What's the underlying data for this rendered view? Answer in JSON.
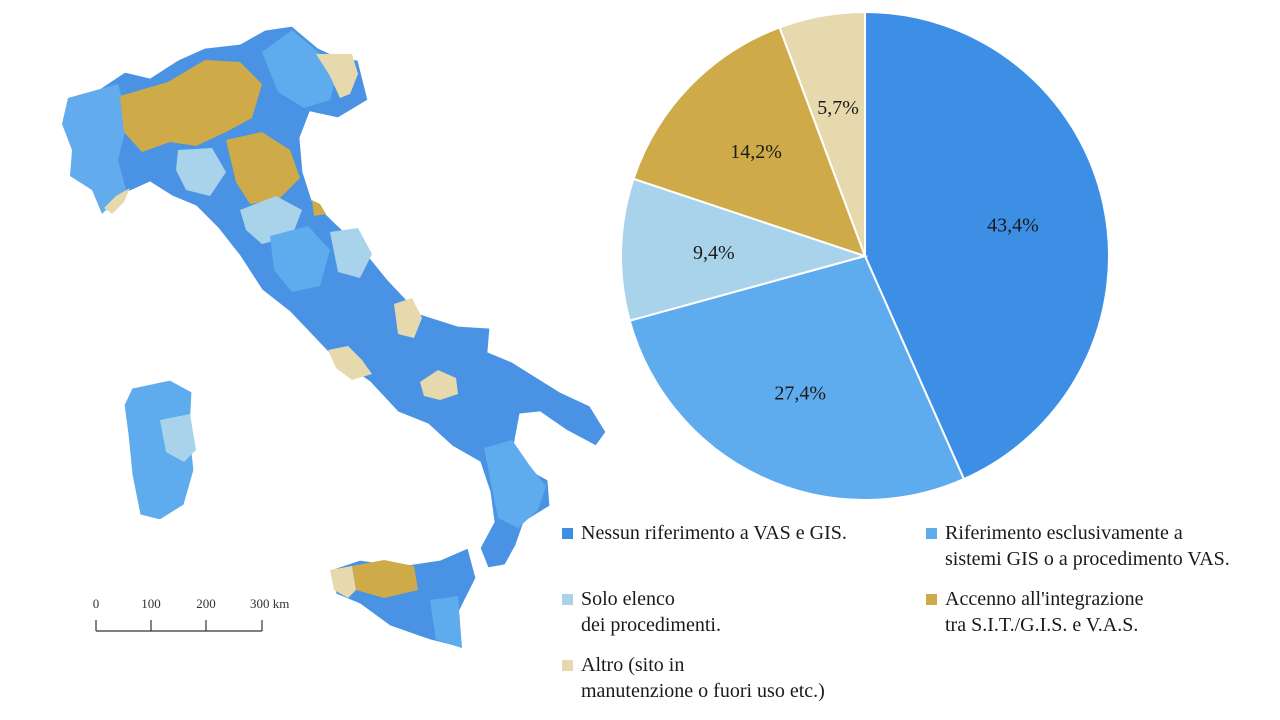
{
  "colors": {
    "none": "#3d8fe6",
    "exclusive": "#5eabed",
    "list": "#a9d3ea",
    "integration": "#cfaa48",
    "other": "#e6d9ad"
  },
  "map": {
    "scale_labels": [
      "0",
      "100",
      "200",
      "300 km"
    ]
  },
  "chart_data": {
    "type": "pie",
    "start_angle_deg": 0,
    "direction": "clockwise",
    "slices": [
      {
        "category": "none",
        "value": 43.4,
        "label": "43,4%"
      },
      {
        "category": "exclusive",
        "value": 27.4,
        "label": "27,4%"
      },
      {
        "category": "list",
        "value": 9.4,
        "label": "9,4%"
      },
      {
        "category": "integration",
        "value": 14.2,
        "label": "14,2%"
      },
      {
        "category": "other",
        "value": 5.7,
        "label": "5,7%"
      }
    ]
  },
  "legend": {
    "none": "Nessun riferimento a VAS e GIS.",
    "exclusive": "Riferimento esclusivamente a\nsistemi GIS o a procedimento VAS.",
    "list": "Solo elenco\ndei procedimenti.",
    "integration": "Accenno all'integrazione\ntra S.I.T./G.I.S. e V.A.S.",
    "other": "Altro (sito in\nmanutenzione o fuori uso etc.)"
  }
}
